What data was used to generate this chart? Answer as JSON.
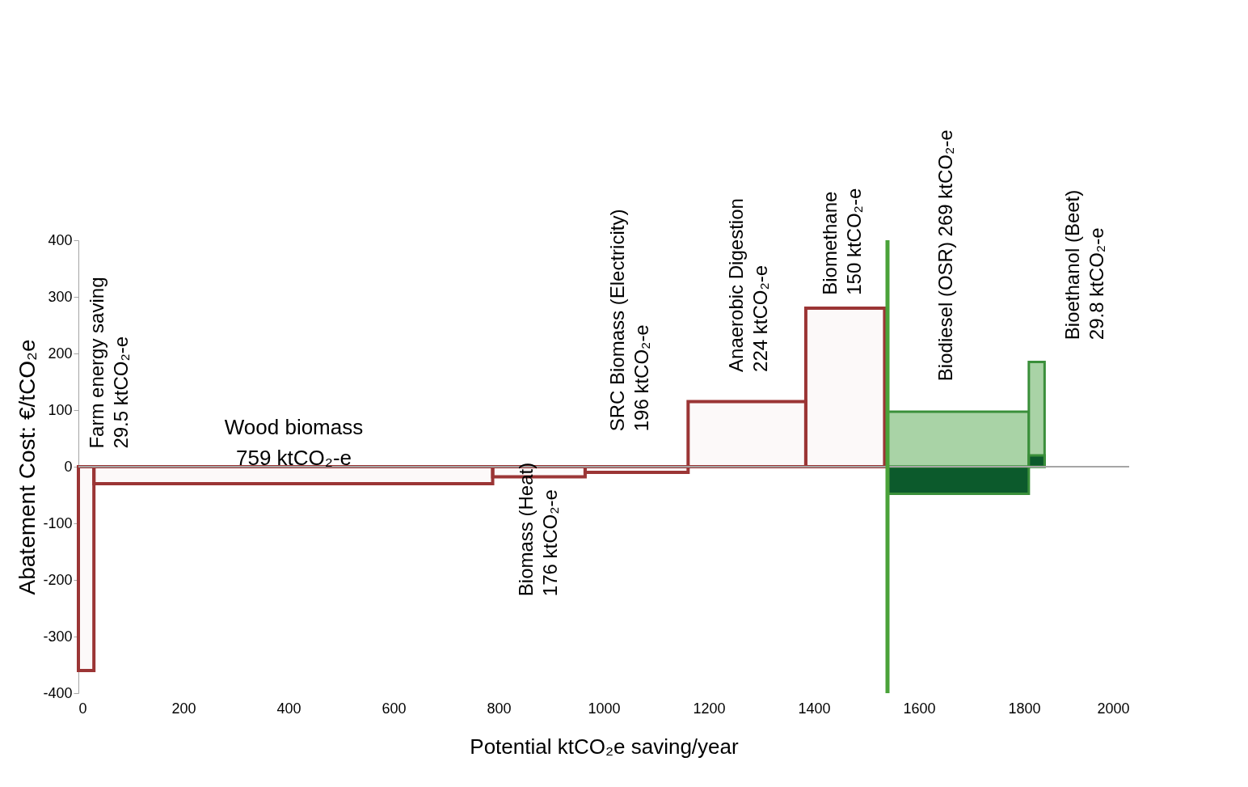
{
  "chart_data": {
    "type": "histogram",
    "xlabel": "Potential ktCO₂e saving/year",
    "ylabel": "Abatement Cost: €/tCO₂e",
    "xlim": [
      0,
      2000
    ],
    "xticks": [
      0,
      200,
      400,
      600,
      800,
      1000,
      1200,
      1400,
      1600,
      1800,
      2000
    ],
    "ylim": [
      -400,
      400
    ],
    "yticks": [
      -400,
      -300,
      -200,
      -100,
      0,
      100,
      200,
      300,
      400
    ],
    "bins": [
      0,
      29.5,
      788.5,
      964.5,
      1160.5,
      1384.5,
      1534.5,
      1540,
      1809,
      1839
    ],
    "series": [
      {
        "color": "#9b3535",
        "values": [
          -360,
          -30,
          -18,
          -10,
          115,
          280,
          null,
          null,
          null
        ]
      },
      {
        "color": "#a9d3a6",
        "values": [
          null,
          null,
          null,
          null,
          null,
          null,
          null,
          97,
          185
        ]
      },
      {
        "color": "#0c5a2c",
        "values": [
          null,
          null,
          null,
          null,
          null,
          null,
          null,
          -48,
          20
        ]
      }
    ],
    "ref_lines": [
      {
        "axis": "y",
        "value": 0,
        "color": "#a6a6a6"
      },
      {
        "axis": "x",
        "value": 1540,
        "color": "#4aa23a"
      }
    ],
    "annotations": [
      "Wood biomass\n759 ktCO₂-e",
      "Farm energy saving\n29.5 ktCO₂-e",
      "Biomass (Heat)\n176 ktCO₂-e",
      "SRC Biomass (Electricity)\n196 ktCO₂-e",
      "Anaerobic Digestion\n224 ktCO₂-e",
      "Biomethane\n150 ktCO₂-e",
      "Biodiesel (OSR) 269 ktCO₂-e",
      "Bioethanol (Beet)\n29.8 ktCO₂-e"
    ],
    "grid": false
  }
}
